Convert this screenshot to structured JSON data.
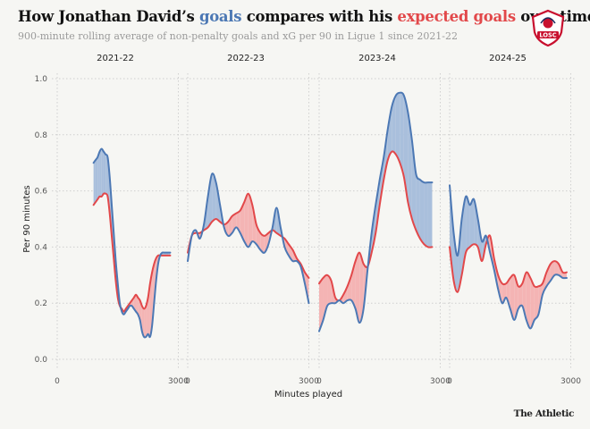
{
  "header": {
    "title_pre": "How Jonathan David’s ",
    "title_goals": "goals",
    "title_mid": " compares with his ",
    "title_xg": "expected goals",
    "title_post": " over time",
    "subtitle": "900-minute rolling average of non-penalty goals and xG per 90 in Ligue 1 since 2021-22"
  },
  "logo": {
    "text": "LOSC",
    "icon": "losc-club-crest"
  },
  "credit": "The Athletic",
  "colors": {
    "goals": "#4c78b4",
    "xg": "#e2484a",
    "fill_goals_above": "#a9bfdc",
    "fill_xg_above": "#f4b4b4",
    "grid": "#cfcfcf",
    "background": "#f6f6f3"
  },
  "chart_data": {
    "type": "line",
    "title": "How Jonathan David’s goals compares with his expected goals over time",
    "subtitle": "900-minute rolling average of non-penalty goals and xG per 90 in Ligue 1 since 2021-22",
    "xlabel": "Minutes played",
    "ylabel": "Per 90 minutes",
    "ylim": [
      0,
      1.0
    ],
    "xlim": [
      0,
      3100
    ],
    "y_ticks": [
      "0.0",
      "0.2",
      "0.4",
      "0.6",
      "0.8",
      "1.0"
    ],
    "y_tick_values": [
      0,
      0.2,
      0.4,
      0.6,
      0.8,
      1.0
    ],
    "x_ticks": [
      0,
      3000
    ],
    "x_tick_labels": [
      "0",
      "3000"
    ],
    "grid": true,
    "panels": [
      {
        "label": "2021-22",
        "x": [
          900,
          950,
          1000,
          1050,
          1100,
          1150,
          1200,
          1250,
          1300,
          1350,
          1400,
          1450,
          1500,
          1550,
          1600,
          1650,
          1700,
          1750,
          1800,
          1850,
          1900,
          1950,
          2000,
          2050,
          2100,
          2150,
          2200,
          2250,
          2300,
          2350,
          2400,
          2450,
          2500,
          2550,
          2600,
          2650,
          2700,
          2750,
          2800
        ],
        "series": [
          {
            "name": "goals",
            "values": [
              0.7,
              0.71,
              0.72,
              0.74,
              0.75,
              0.74,
              0.73,
              0.72,
              0.65,
              0.55,
              0.45,
              0.35,
              0.27,
              0.2,
              0.17,
              0.16,
              0.17,
              0.18,
              0.19,
              0.19,
              0.18,
              0.17,
              0.16,
              0.14,
              0.1,
              0.08,
              0.08,
              0.09,
              0.08,
              0.12,
              0.2,
              0.28,
              0.34,
              0.37,
              0.38,
              0.38,
              0.38,
              0.38,
              0.38
            ]
          },
          {
            "name": "xg",
            "values": [
              0.55,
              0.56,
              0.57,
              0.58,
              0.58,
              0.59,
              0.59,
              0.58,
              0.52,
              0.44,
              0.36,
              0.28,
              0.22,
              0.19,
              0.18,
              0.17,
              0.18,
              0.19,
              0.2,
              0.21,
              0.22,
              0.23,
              0.22,
              0.21,
              0.19,
              0.18,
              0.19,
              0.22,
              0.27,
              0.31,
              0.34,
              0.36,
              0.37,
              0.37,
              0.37,
              0.37,
              0.37,
              0.37,
              0.37
            ]
          }
        ]
      },
      {
        "label": "2022-23",
        "x": [
          0,
          100,
          200,
          300,
          400,
          500,
          600,
          700,
          800,
          900,
          1000,
          1100,
          1200,
          1300,
          1400,
          1500,
          1600,
          1700,
          1800,
          1900,
          2000,
          2100,
          2200,
          2300,
          2400,
          2500,
          2600,
          2700,
          2800,
          2900,
          3000
        ],
        "series": [
          {
            "name": "goals",
            "values": [
              0.35,
              0.44,
              0.46,
              0.43,
              0.48,
              0.58,
              0.66,
              0.63,
              0.55,
              0.47,
              0.44,
              0.45,
              0.47,
              0.45,
              0.42,
              0.4,
              0.42,
              0.41,
              0.39,
              0.38,
              0.41,
              0.47,
              0.54,
              0.47,
              0.4,
              0.37,
              0.35,
              0.35,
              0.33,
              0.27,
              0.2
            ]
          },
          {
            "name": "xg",
            "values": [
              0.38,
              0.44,
              0.45,
              0.45,
              0.46,
              0.47,
              0.49,
              0.5,
              0.49,
              0.48,
              0.49,
              0.51,
              0.52,
              0.53,
              0.56,
              0.59,
              0.55,
              0.48,
              0.45,
              0.44,
              0.45,
              0.46,
              0.45,
              0.44,
              0.43,
              0.41,
              0.39,
              0.36,
              0.34,
              0.31,
              0.29
            ]
          }
        ]
      },
      {
        "label": "2023-24",
        "x": [
          0,
          100,
          200,
          300,
          400,
          500,
          600,
          700,
          800,
          900,
          1000,
          1100,
          1200,
          1300,
          1400,
          1500,
          1600,
          1700,
          1800,
          1900,
          2000,
          2100,
          2200,
          2300,
          2400,
          2500,
          2600,
          2700,
          2800
        ],
        "series": [
          {
            "name": "goals",
            "values": [
              0.1,
              0.14,
              0.19,
              0.2,
              0.2,
              0.21,
              0.2,
              0.21,
              0.21,
              0.18,
              0.13,
              0.18,
              0.32,
              0.45,
              0.55,
              0.64,
              0.72,
              0.82,
              0.9,
              0.94,
              0.95,
              0.94,
              0.88,
              0.78,
              0.66,
              0.64,
              0.63,
              0.63,
              0.63
            ]
          },
          {
            "name": "xg",
            "values": [
              0.27,
              0.29,
              0.3,
              0.28,
              0.22,
              0.21,
              0.23,
              0.26,
              0.3,
              0.35,
              0.38,
              0.34,
              0.33,
              0.38,
              0.45,
              0.55,
              0.64,
              0.71,
              0.74,
              0.73,
              0.7,
              0.65,
              0.56,
              0.5,
              0.46,
              0.43,
              0.41,
              0.4,
              0.4
            ]
          }
        ]
      },
      {
        "label": "2024-25",
        "x": [
          0,
          100,
          200,
          300,
          400,
          500,
          600,
          700,
          800,
          900,
          1000,
          1100,
          1200,
          1300,
          1400,
          1500,
          1600,
          1700,
          1800,
          1900,
          2000,
          2100,
          2200,
          2300,
          2400,
          2500,
          2600,
          2700,
          2800,
          2900
        ],
        "series": [
          {
            "name": "goals",
            "values": [
              0.62,
              0.45,
              0.37,
              0.5,
              0.58,
              0.55,
              0.57,
              0.5,
              0.42,
              0.44,
              0.38,
              0.32,
              0.25,
              0.2,
              0.22,
              0.18,
              0.14,
              0.18,
              0.19,
              0.14,
              0.11,
              0.14,
              0.16,
              0.23,
              0.26,
              0.28,
              0.3,
              0.3,
              0.29,
              0.29
            ]
          },
          {
            "name": "xg",
            "values": [
              0.4,
              0.28,
              0.24,
              0.3,
              0.38,
              0.4,
              0.41,
              0.4,
              0.35,
              0.41,
              0.44,
              0.36,
              0.3,
              0.27,
              0.27,
              0.29,
              0.3,
              0.26,
              0.27,
              0.31,
              0.29,
              0.26,
              0.26,
              0.27,
              0.31,
              0.34,
              0.35,
              0.34,
              0.31,
              0.31
            ]
          }
        ]
      }
    ]
  }
}
